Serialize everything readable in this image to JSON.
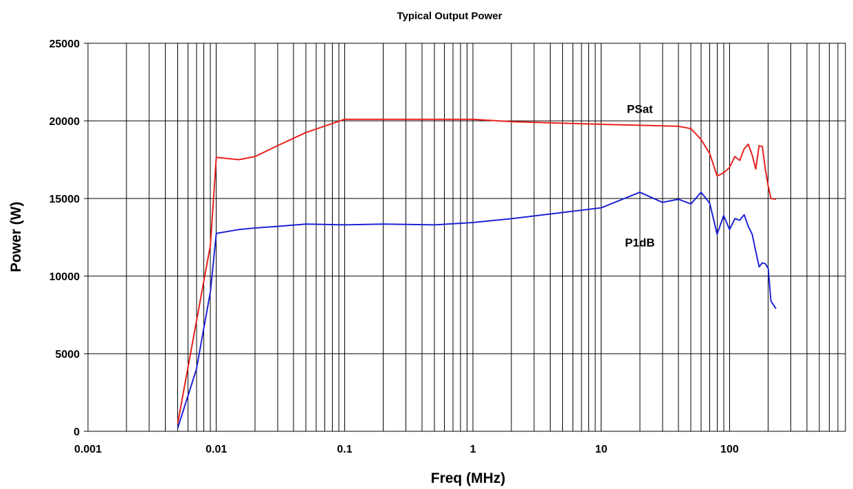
{
  "chart_data": {
    "type": "line",
    "title": "Typical Output Power",
    "xlabel": "Freq (MHz)",
    "ylabel": "Power (W)",
    "x_scale": "log",
    "xlim": [
      0.001,
      800
    ],
    "ylim": [
      0,
      25000
    ],
    "grid": true,
    "x_ticks": [
      {
        "value": 0.001,
        "label": "0.001"
      },
      {
        "value": 0.01,
        "label": "0.01"
      },
      {
        "value": 0.1,
        "label": "0.1"
      },
      {
        "value": 1,
        "label": "1"
      },
      {
        "value": 10,
        "label": "10"
      },
      {
        "value": 100,
        "label": "100"
      }
    ],
    "y_ticks": [
      {
        "value": 0,
        "label": "0"
      },
      {
        "value": 5000,
        "label": "5000"
      },
      {
        "value": 10000,
        "label": "10000"
      },
      {
        "value": 15000,
        "label": "15000"
      },
      {
        "value": 20000,
        "label": "20000"
      },
      {
        "value": 25000,
        "label": "25000"
      }
    ],
    "series": [
      {
        "name": "PSat",
        "color": "#e8201c",
        "label_at": [
          20,
          20500
        ],
        "points": [
          [
            0.005,
            500
          ],
          [
            0.009,
            12000
          ],
          [
            0.01,
            17650
          ],
          [
            0.015,
            17500
          ],
          [
            0.02,
            17700
          ],
          [
            0.03,
            18400
          ],
          [
            0.05,
            19250
          ],
          [
            0.1,
            20100
          ],
          [
            0.2,
            20100
          ],
          [
            0.5,
            20100
          ],
          [
            1,
            20100
          ],
          [
            2,
            19950
          ],
          [
            5,
            19850
          ],
          [
            10,
            19780
          ],
          [
            20,
            19720
          ],
          [
            30,
            19680
          ],
          [
            40,
            19650
          ],
          [
            50,
            19500
          ],
          [
            60,
            18800
          ],
          [
            70,
            17900
          ],
          [
            80,
            16450
          ],
          [
            90,
            16650
          ],
          [
            100,
            17000
          ],
          [
            110,
            17700
          ],
          [
            120,
            17450
          ],
          [
            130,
            18200
          ],
          [
            140,
            18500
          ],
          [
            150,
            17800
          ],
          [
            160,
            16900
          ],
          [
            170,
            18400
          ],
          [
            180,
            18350
          ],
          [
            190,
            16900
          ],
          [
            200,
            15800
          ],
          [
            210,
            15000
          ],
          [
            230,
            14950
          ]
        ]
      },
      {
        "name": "P1dB",
        "color": "#1c22d6",
        "label_at": [
          20,
          11900
        ],
        "points": [
          [
            0.005,
            200
          ],
          [
            0.007,
            4000
          ],
          [
            0.009,
            9000
          ],
          [
            0.01,
            12750
          ],
          [
            0.015,
            13000
          ],
          [
            0.02,
            13100
          ],
          [
            0.03,
            13200
          ],
          [
            0.05,
            13350
          ],
          [
            0.1,
            13300
          ],
          [
            0.2,
            13350
          ],
          [
            0.5,
            13300
          ],
          [
            1,
            13450
          ],
          [
            2,
            13700
          ],
          [
            5,
            14100
          ],
          [
            10,
            14400
          ],
          [
            20,
            15400
          ],
          [
            30,
            14750
          ],
          [
            40,
            14950
          ],
          [
            50,
            14650
          ],
          [
            60,
            15400
          ],
          [
            70,
            14700
          ],
          [
            80,
            12700
          ],
          [
            90,
            13900
          ],
          [
            100,
            13000
          ],
          [
            110,
            13700
          ],
          [
            120,
            13600
          ],
          [
            130,
            13950
          ],
          [
            140,
            13200
          ],
          [
            150,
            12700
          ],
          [
            160,
            11600
          ],
          [
            170,
            10600
          ],
          [
            180,
            10850
          ],
          [
            190,
            10800
          ],
          [
            200,
            10500
          ],
          [
            210,
            8400
          ],
          [
            230,
            7900
          ]
        ]
      }
    ]
  }
}
